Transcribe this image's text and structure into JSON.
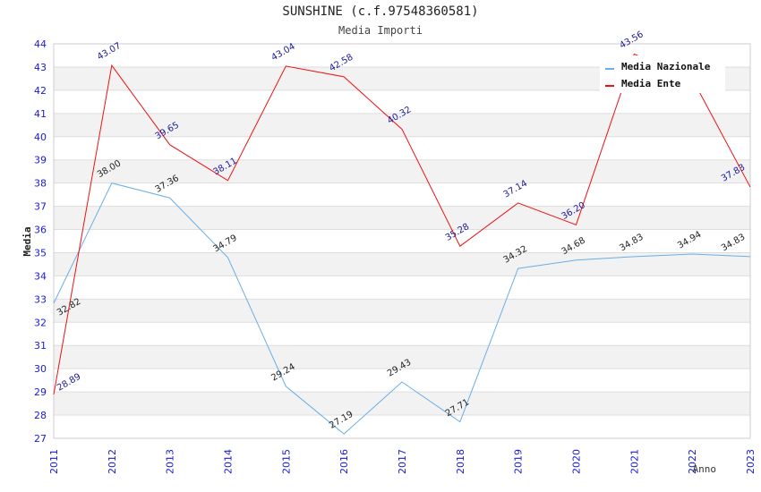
{
  "chart_data": {
    "type": "line",
    "title": "SUNSHINE (c.f.97548360581)",
    "subtitle": "Media Importi",
    "xlabel": "Anno",
    "ylabel": "Media",
    "ylim": [
      27,
      44
    ],
    "y_ticks": [
      "27",
      "28",
      "29",
      "30",
      "31",
      "32",
      "33",
      "34",
      "35",
      "36",
      "37",
      "38",
      "39",
      "40",
      "41",
      "42",
      "43",
      "44"
    ],
    "categories": [
      "2011",
      "2012",
      "2013",
      "2014",
      "2015",
      "2016",
      "2017",
      "2018",
      "2019",
      "2020",
      "2021",
      "2022",
      "2023"
    ],
    "grid": true,
    "legend_position": "top-right",
    "series": [
      {
        "name": "Media Nazionale",
        "color": "#6aaee8",
        "values": [
          32.82,
          38.0,
          37.36,
          34.79,
          29.24,
          27.19,
          29.43,
          27.71,
          34.32,
          34.68,
          34.83,
          34.94,
          34.83
        ],
        "labels": [
          "32.82",
          "38.00",
          "37.36",
          "34.79",
          "29.24",
          "27.19",
          "29.43",
          "27.71",
          "34.32",
          "34.68",
          "34.83",
          "34.94",
          "34.83"
        ]
      },
      {
        "name": "Media Ente",
        "color": "#ee1111",
        "values": [
          28.89,
          43.07,
          39.65,
          38.11,
          43.04,
          42.58,
          40.32,
          35.28,
          37.14,
          36.2,
          43.56,
          42.5,
          37.83
        ],
        "labels": [
          "28.89",
          "43.07",
          "39.65",
          "38.11",
          "43.04",
          "42.58",
          "40.32",
          "35.28",
          "37.14",
          "36.20",
          "43.56",
          "",
          "37.83"
        ]
      }
    ]
  }
}
